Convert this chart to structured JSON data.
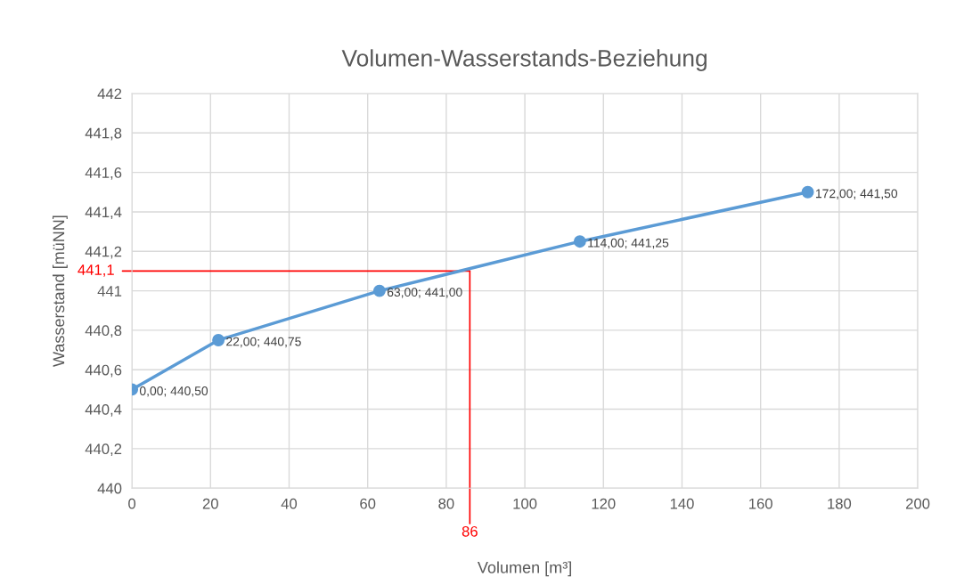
{
  "chart_data": {
    "type": "line",
    "title": "Volumen-Wasserstands-Beziehung",
    "xlabel": "Volumen [m³]",
    "ylabel": "Wasserstand [müNN]",
    "x": [
      0,
      22,
      63,
      114,
      172
    ],
    "series": [
      {
        "color": "#5b9bd5",
        "values": [
          440.5,
          440.75,
          441.0,
          441.25,
          441.5
        ],
        "value_labels": [
          "0,00; 440,50",
          "22,00; 440,75",
          "63,00; 441,00",
          "114,00; 441,25",
          "172,00; 441,50"
        ]
      }
    ],
    "marker": "circle",
    "grid": true,
    "legend": false,
    "xlim": [
      0,
      200
    ],
    "xticks": [
      0,
      20,
      40,
      60,
      80,
      100,
      120,
      140,
      160,
      180,
      200
    ],
    "ylim": [
      440,
      442
    ],
    "yticks": [
      {
        "value": 440,
        "label": "440"
      },
      {
        "value": 440.2,
        "label": "440,2"
      },
      {
        "value": 440.4,
        "label": "440,4"
      },
      {
        "value": 440.6,
        "label": "440,6"
      },
      {
        "value": 440.8,
        "label": "440,8"
      },
      {
        "value": 441,
        "label": "441"
      },
      {
        "value": 441.2,
        "label": "441,2"
      },
      {
        "value": 441.4,
        "label": "441,4"
      },
      {
        "value": 441.6,
        "label": "441,6"
      },
      {
        "value": 441.8,
        "label": "441,8"
      },
      {
        "value": 442,
        "label": "442"
      }
    ],
    "ref_lines": [
      {
        "axis": "y",
        "value": 441.1,
        "label": "441,1",
        "color": "#ff0000"
      },
      {
        "axis": "x",
        "value": 86,
        "label": "86",
        "color": "#ff0000"
      }
    ]
  }
}
